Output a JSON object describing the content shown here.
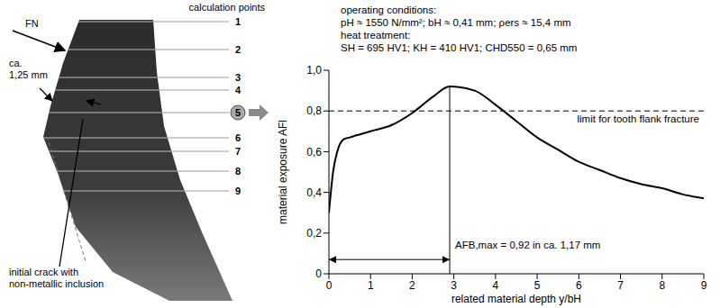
{
  "chart_data": {
    "type": "line",
    "operating_conditions": {
      "heading": "operating conditions:",
      "text": "pH ≈ 1550 N/mm²; bH ≈ 0,41 mm; ρers ≈ 15,4 mm"
    },
    "heat_treatment": {
      "heading": "heat treatment:",
      "text": "SH = 695 HV1; KH = 410 HV1; CHD550 = 0,65 mm"
    },
    "x": [
      0,
      0.1,
      0.2,
      0.35,
      0.5,
      1.0,
      1.5,
      2.0,
      2.5,
      2.9,
      3.5,
      4.0,
      4.5,
      5.0,
      5.5,
      6.0,
      6.5,
      7.0,
      7.5,
      8.0,
      8.5,
      9.0
    ],
    "values": [
      0.3,
      0.5,
      0.6,
      0.66,
      0.67,
      0.7,
      0.73,
      0.79,
      0.87,
      0.92,
      0.9,
      0.83,
      0.75,
      0.67,
      0.61,
      0.55,
      0.51,
      0.47,
      0.44,
      0.42,
      0.39,
      0.37
    ],
    "color": "#000000",
    "xlim": [
      0,
      9
    ],
    "xticks": [
      0,
      1,
      2,
      3,
      4,
      5,
      6,
      7,
      8,
      9
    ],
    "ylim": [
      0,
      1
    ],
    "yticks": [
      0,
      {
        "value": 0.2,
        "label": "0,2"
      },
      {
        "value": 0.4,
        "label": "0,4"
      },
      {
        "value": 0.6,
        "label": "0,6"
      },
      {
        "value": 0.8,
        "label": "0,8"
      },
      {
        "value": 1,
        "label": "1,0"
      }
    ],
    "xlabel": "related material depth y/bH",
    "ylabel": "material exposure AFl",
    "grid": false,
    "limit": {
      "value": 0.8,
      "label": "limit for tooth flank fracture",
      "line_style": "dashed"
    },
    "maximum": {
      "x": 2.9,
      "y": 0.92,
      "label": "AFB,max = 0,92 in ca. 1,17 mm"
    }
  },
  "diagram": {
    "title": "calculation points",
    "points": [
      "1",
      "2",
      "3",
      "4",
      "5",
      "6",
      "7",
      "8",
      "9"
    ],
    "highlight": "5",
    "force_label": "FN",
    "dimension_label": [
      "ca.",
      "1,25 mm"
    ],
    "crack_label": [
      "initial crack with",
      "non-metallic inclusion"
    ]
  }
}
